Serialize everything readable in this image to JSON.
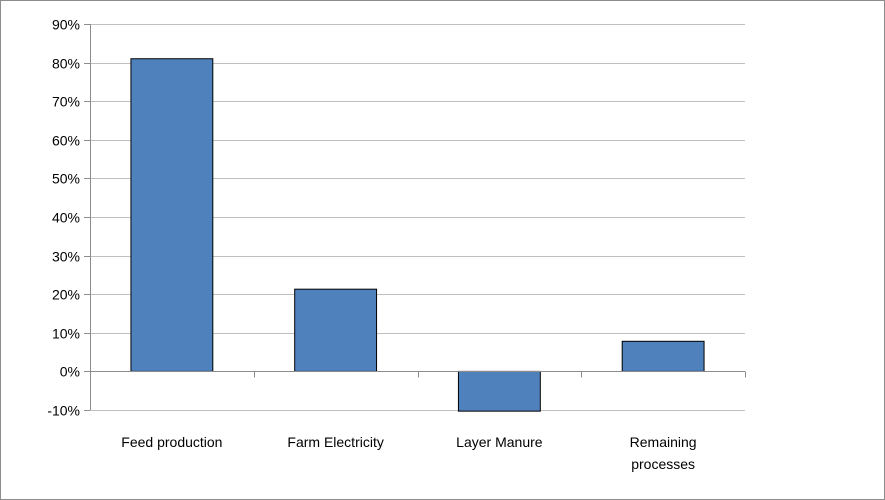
{
  "chart_data": {
    "type": "bar",
    "categories": [
      [
        "Feed production"
      ],
      [
        "Farm Electricity"
      ],
      [
        "Layer Manure"
      ],
      [
        "Remaining",
        "processes"
      ]
    ],
    "values": [
      81,
      21.3,
      -10.3,
      7.8
    ],
    "ylim": [
      -10,
      90
    ],
    "yticks": [
      "-10%",
      "0%",
      "10%",
      "20%",
      "30%",
      "40%",
      "50%",
      "60%",
      "70%",
      "80%",
      "90%"
    ],
    "ytick_values": [
      -10,
      0,
      10,
      20,
      30,
      40,
      50,
      60,
      70,
      80,
      90
    ],
    "grid": true,
    "legend": "none",
    "bar_color": "#4f81bd",
    "bar_edge_color": "#000000",
    "gridline_color": "#c0c0c0"
  }
}
